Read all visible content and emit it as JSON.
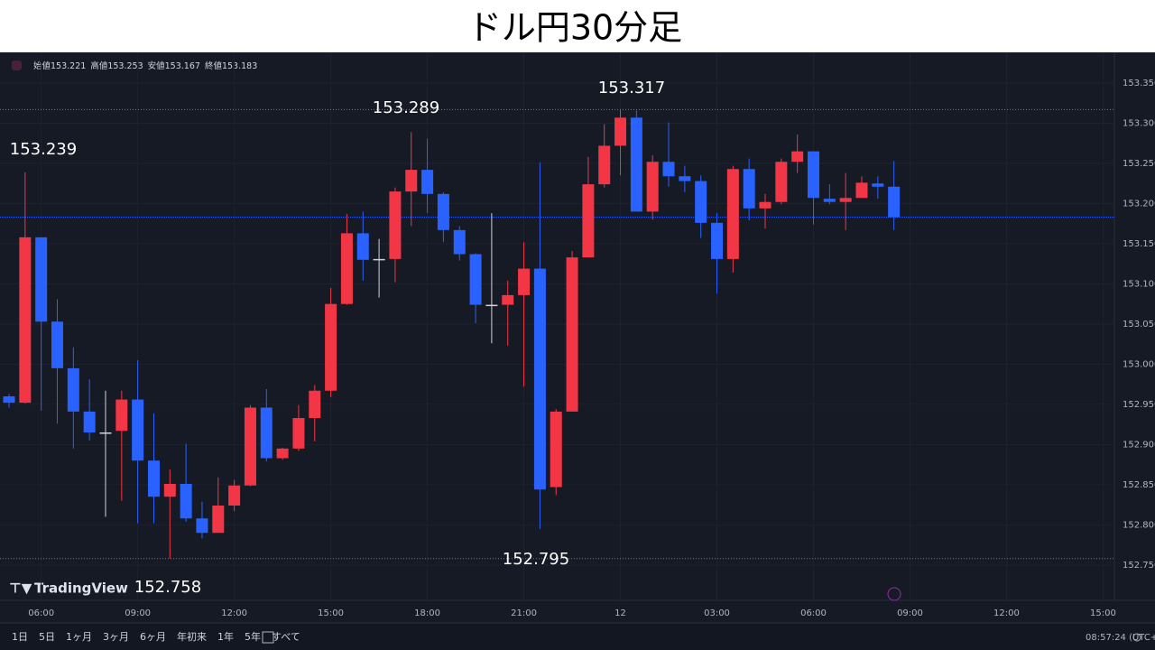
{
  "header": {
    "title": "ドル円30分足"
  },
  "chart_data": {
    "type": "candlestick",
    "ohlc_legend": [
      {
        "label": "始値",
        "value": "153.221"
      },
      {
        "label": "高値",
        "value": "153.253"
      },
      {
        "label": "安値",
        "value": "153.167"
      },
      {
        "label": "終値",
        "value": "153.183"
      }
    ],
    "categories": [
      null,
      null,
      "06:00",
      null,
      null,
      null,
      null,
      null,
      "09:00",
      null,
      null,
      null,
      null,
      null,
      "12:00",
      null,
      null,
      null,
      null,
      null,
      "15:00",
      null,
      null,
      null,
      null,
      null,
      "18:00",
      null,
      null,
      null,
      null,
      null,
      "21:00",
      null,
      null,
      null,
      null,
      null,
      "12",
      null,
      null,
      null,
      null,
      null,
      "03:00",
      null,
      null,
      null,
      null,
      null,
      "06:00",
      null,
      null,
      null,
      null,
      null,
      "09:00",
      null,
      null,
      null,
      null,
      null,
      "12:00",
      null,
      null,
      null,
      null,
      null,
      "15:00"
    ],
    "open": [
      152.96,
      152.952,
      153.158,
      153.053,
      152.995,
      152.941,
      152.915,
      152.917,
      152.956,
      152.88,
      152.835,
      152.851,
      152.808,
      152.79,
      152.824,
      152.849,
      152.946,
      152.883,
      152.895,
      152.933,
      152.967,
      153.075,
      153.163,
      153.131,
      153.131,
      153.215,
      153.242,
      153.212,
      153.167,
      153.137,
      153.074,
      153.074,
      153.086,
      153.119,
      152.847,
      152.941,
      153.133,
      153.224,
      153.272,
      153.307,
      153.19,
      153.252,
      153.234,
      153.228,
      153.176,
      153.131,
      153.243,
      153.194,
      153.202,
      153.252,
      153.265,
      153.206,
      153.202,
      153.207,
      153.225,
      153.221,
      null,
      null,
      null,
      null,
      null,
      null,
      null,
      null,
      null,
      null,
      null,
      null,
      null
    ],
    "high": [
      152.963,
      153.239,
      153.158,
      153.081,
      153.021,
      152.981,
      152.967,
      152.967,
      153.005,
      152.939,
      152.869,
      152.901,
      152.829,
      152.859,
      152.856,
      152.949,
      152.969,
      152.896,
      152.949,
      152.974,
      153.095,
      153.187,
      153.19,
      153.156,
      153.22,
      153.289,
      153.281,
      153.214,
      153.172,
      153.138,
      153.188,
      153.104,
      153.152,
      153.251,
      152.944,
      153.141,
      153.258,
      153.299,
      153.317,
      153.316,
      153.26,
      153.301,
      153.247,
      153.235,
      153.188,
      153.247,
      153.256,
      153.212,
      153.256,
      153.286,
      153.265,
      153.224,
      153.238,
      153.234,
      153.234,
      153.253,
      null,
      null,
      null,
      null,
      null,
      null,
      null,
      null,
      null,
      null,
      null,
      null,
      null
    ],
    "low": [
      152.946,
      152.951,
      152.942,
      152.926,
      152.895,
      152.905,
      152.81,
      152.83,
      152.802,
      152.802,
      152.758,
      152.804,
      152.783,
      152.79,
      152.817,
      152.848,
      152.879,
      152.881,
      152.892,
      152.904,
      152.959,
      153.074,
      153.104,
      153.083,
      153.102,
      153.172,
      153.188,
      153.152,
      153.129,
      153.051,
      153.026,
      153.023,
      152.972,
      152.795,
      152.837,
      152.941,
      153.133,
      153.22,
      153.235,
      153.19,
      153.18,
      153.221,
      153.214,
      153.157,
      153.088,
      153.114,
      153.179,
      153.169,
      153.199,
      153.238,
      153.174,
      153.199,
      153.167,
      153.207,
      153.206,
      153.167,
      null,
      null,
      null,
      null,
      null,
      null,
      null,
      null,
      null,
      null,
      null,
      null,
      null
    ],
    "close": [
      152.952,
      153.158,
      153.053,
      152.995,
      152.941,
      152.915,
      152.915,
      152.956,
      152.88,
      152.835,
      152.851,
      152.808,
      152.79,
      152.824,
      152.849,
      152.946,
      152.883,
      152.895,
      152.933,
      152.967,
      153.075,
      153.163,
      153.13,
      153.131,
      153.215,
      153.242,
      153.212,
      153.167,
      153.137,
      153.074,
      153.074,
      153.086,
      153.119,
      152.844,
      152.941,
      153.133,
      153.224,
      153.272,
      153.307,
      153.19,
      153.252,
      153.234,
      153.228,
      153.176,
      153.131,
      153.243,
      153.194,
      153.202,
      153.252,
      153.265,
      153.207,
      153.202,
      153.207,
      153.226,
      153.221,
      153.183,
      null,
      null,
      null,
      null,
      null,
      null,
      null,
      null,
      null,
      null,
      null,
      null,
      null
    ],
    "up_color": "#f23645",
    "down_color": "#2962ff",
    "flat_color": "#d1d4dc",
    "ylim": [
      152.706,
      153.386
    ],
    "yticks": [
      {
        "value": 153.35,
        "label": "153.350"
      },
      {
        "value": 153.3,
        "label": "153.300"
      },
      {
        "value": 153.25,
        "label": "153.250"
      },
      {
        "value": 153.2,
        "label": "153.200"
      },
      {
        "value": 153.15,
        "label": "153.150"
      },
      {
        "value": 153.1,
        "label": "153.100"
      },
      {
        "value": 153.05,
        "label": "153.050"
      },
      {
        "value": 153.0,
        "label": "153.000"
      },
      {
        "value": 152.95,
        "label": "152.950"
      },
      {
        "value": 152.9,
        "label": "152.900"
      },
      {
        "value": 152.85,
        "label": "152.850"
      },
      {
        "value": 152.8,
        "label": "152.800"
      },
      {
        "value": 152.75,
        "label": "152.750"
      }
    ],
    "grid": true,
    "annotations": [
      {
        "text": "153.239"
      },
      {
        "text": "153.289"
      },
      {
        "text": "153.317"
      },
      {
        "text": "152.795"
      },
      {
        "text": "152.758"
      }
    ]
  },
  "ui": {
    "logo": "TradingView",
    "ranges": [
      "1日",
      "5日",
      "1ヶ月",
      "3ヶ月",
      "6ヶ月",
      "年初来",
      "1年",
      "5年",
      "すべて"
    ],
    "clock": "08:57:24 (UTC+9)"
  }
}
